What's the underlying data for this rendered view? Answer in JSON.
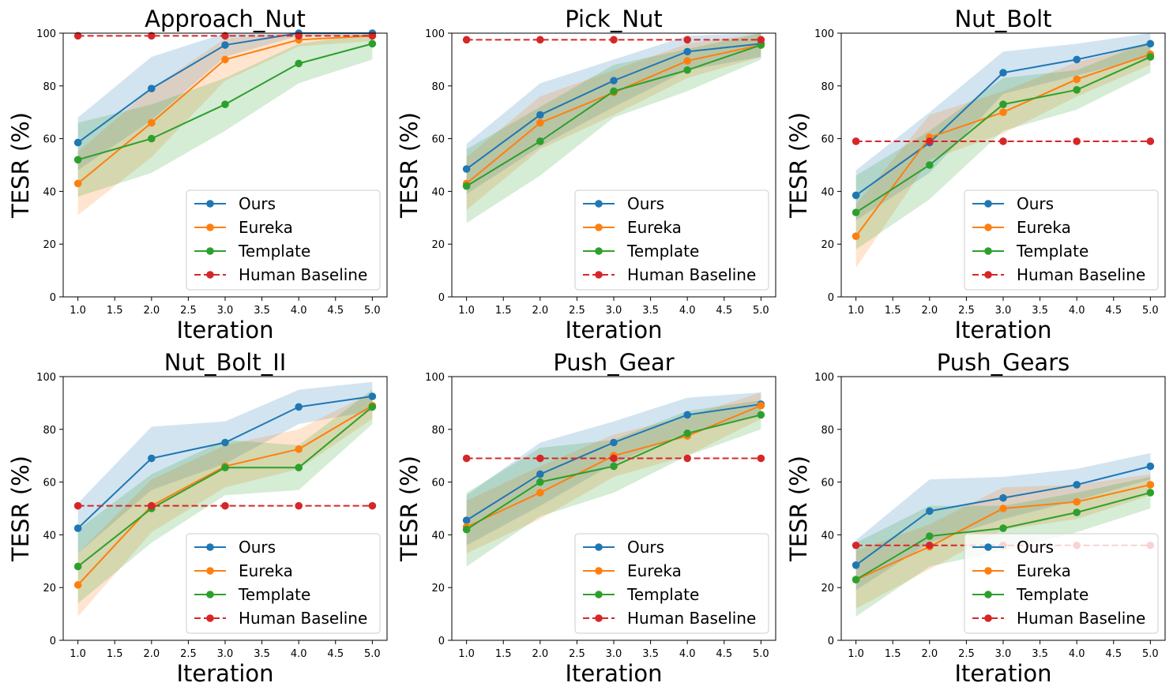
{
  "figure": {
    "legend_position": "lower-right",
    "x_ticks": [
      "1.0",
      "1.5",
      "2.0",
      "2.5",
      "3.0",
      "3.5",
      "4.0",
      "4.5",
      "5.0"
    ],
    "y_ticks": [
      "0",
      "20",
      "40",
      "60",
      "80",
      "100"
    ]
  },
  "chart_data": [
    {
      "type": "line",
      "title": "Approach_Nut",
      "xlabel": "Iteration",
      "ylabel": "TESR (%)",
      "xlim": [
        0.8,
        5.2
      ],
      "ylim": [
        0,
        100
      ],
      "grid": false,
      "legend_position": "lower-right",
      "x": [
        1,
        2,
        3,
        4,
        5
      ],
      "series": [
        {
          "name": "Ours",
          "color": "#1f77b4",
          "dashed": false,
          "values": [
            58.5,
            79,
            95.5,
            100,
            100
          ],
          "band_low": [
            48,
            67,
            91,
            99,
            99
          ],
          "band_high": [
            68,
            91,
            100,
            100,
            100
          ]
        },
        {
          "name": "Eureka",
          "color": "#ff7f0e",
          "dashed": false,
          "values": [
            43,
            66,
            90,
            97.5,
            99
          ],
          "band_low": [
            31,
            53,
            82,
            95,
            97
          ],
          "band_high": [
            55,
            79,
            98,
            100,
            100
          ]
        },
        {
          "name": "Template",
          "color": "#2ca02c",
          "dashed": false,
          "values": [
            52,
            60,
            73,
            88.5,
            96
          ],
          "band_low": [
            38,
            47,
            63,
            81,
            90
          ],
          "band_high": [
            66,
            73,
            83,
            96,
            100
          ]
        },
        {
          "name": "Human Baseline",
          "color": "#d62728",
          "dashed": true,
          "values": [
            99,
            99,
            99,
            99,
            99
          ]
        }
      ]
    },
    {
      "type": "line",
      "title": "Pick_Nut",
      "xlabel": "Iteration",
      "ylabel": "TESR (%)",
      "xlim": [
        0.8,
        5.2
      ],
      "ylim": [
        0,
        100
      ],
      "grid": false,
      "legend_position": "lower-right",
      "x": [
        1,
        2,
        3,
        4,
        5
      ],
      "series": [
        {
          "name": "Ours",
          "color": "#1f77b4",
          "dashed": false,
          "values": [
            48.5,
            69,
            82,
            93,
            96
          ],
          "band_low": [
            39,
            57,
            72,
            86,
            91
          ],
          "band_high": [
            58,
            81,
            90,
            99,
            100
          ]
        },
        {
          "name": "Eureka",
          "color": "#ff7f0e",
          "dashed": false,
          "values": [
            43,
            66,
            77.5,
            89.5,
            95.5
          ],
          "band_low": [
            33,
            56,
            69,
            83,
            91
          ],
          "band_high": [
            53,
            76,
            86,
            96,
            100
          ]
        },
        {
          "name": "Template",
          "color": "#2ca02c",
          "dashed": false,
          "values": [
            42,
            59,
            78,
            86,
            95.5
          ],
          "band_low": [
            28,
            46,
            68,
            78,
            90
          ],
          "band_high": [
            56,
            72,
            88,
            94,
            100
          ]
        },
        {
          "name": "Human Baseline",
          "color": "#d62728",
          "dashed": true,
          "values": [
            97.5,
            97.5,
            97.5,
            97.5,
            97.5
          ]
        }
      ]
    },
    {
      "type": "line",
      "title": "Nut_Bolt",
      "xlabel": "Iteration",
      "ylabel": "TESR (%)",
      "xlim": [
        0.8,
        5.2
      ],
      "ylim": [
        0,
        100
      ],
      "grid": false,
      "legend_position": "lower-right",
      "x": [
        1,
        2,
        3,
        4,
        5
      ],
      "series": [
        {
          "name": "Ours",
          "color": "#1f77b4",
          "dashed": false,
          "values": [
            38.5,
            58.5,
            85,
            90,
            96
          ],
          "band_low": [
            29,
            47,
            77,
            84,
            91
          ],
          "band_high": [
            48,
            70,
            93,
            96,
            100
          ]
        },
        {
          "name": "Eureka",
          "color": "#ff7f0e",
          "dashed": false,
          "values": [
            23,
            60.5,
            70,
            82.5,
            92
          ],
          "band_low": [
            11,
            52,
            62,
            76,
            88
          ],
          "band_high": [
            35,
            69,
            78,
            89,
            96
          ]
        },
        {
          "name": "Template",
          "color": "#2ca02c",
          "dashed": false,
          "values": [
            32,
            50,
            73,
            78.5,
            91
          ],
          "band_low": [
            18,
            37,
            63,
            71,
            85
          ],
          "band_high": [
            46,
            63,
            83,
            86,
            97
          ]
        },
        {
          "name": "Human Baseline",
          "color": "#d62728",
          "dashed": true,
          "values": [
            59,
            59,
            59,
            59,
            59
          ]
        }
      ]
    },
    {
      "type": "line",
      "title": "Nut_Bolt_II",
      "xlabel": "Iteration",
      "ylabel": "TESR (%)",
      "xlim": [
        0.8,
        5.2
      ],
      "ylim": [
        0,
        100
      ],
      "grid": false,
      "legend_position": "lower-right",
      "x": [
        1,
        2,
        3,
        4,
        5
      ],
      "series": [
        {
          "name": "Ours",
          "color": "#1f77b4",
          "dashed": false,
          "values": [
            42.5,
            69,
            75,
            88.5,
            92.5
          ],
          "band_low": [
            33,
            57,
            67,
            82,
            87
          ],
          "band_high": [
            52,
            81,
            83,
            95,
            98
          ]
        },
        {
          "name": "Eureka",
          "color": "#ff7f0e",
          "dashed": false,
          "values": [
            21,
            51,
            66,
            72.5,
            89
          ],
          "band_low": [
            9,
            41,
            58,
            65,
            84
          ],
          "band_high": [
            33,
            61,
            74,
            80,
            94
          ]
        },
        {
          "name": "Template",
          "color": "#2ca02c",
          "dashed": false,
          "values": [
            28,
            50,
            65.5,
            65.5,
            88.5
          ],
          "band_low": [
            14,
            37,
            55,
            57,
            82
          ],
          "band_high": [
            42,
            63,
            76,
            74,
            95
          ]
        },
        {
          "name": "Human Baseline",
          "color": "#d62728",
          "dashed": true,
          "values": [
            51,
            51,
            51,
            51,
            51
          ]
        }
      ]
    },
    {
      "type": "line",
      "title": "Push_Gear",
      "xlabel": "Iteration",
      "ylabel": "TESR (%)",
      "xlim": [
        0.8,
        5.2
      ],
      "ylim": [
        0,
        100
      ],
      "grid": false,
      "legend_position": "lower-right",
      "x": [
        1,
        2,
        3,
        4,
        5
      ],
      "series": [
        {
          "name": "Ours",
          "color": "#1f77b4",
          "dashed": false,
          "values": [
            45.5,
            63,
            75,
            85.5,
            89.5
          ],
          "band_low": [
            36,
            51,
            67,
            79,
            85
          ],
          "band_high": [
            55,
            75,
            83,
            92,
            94
          ]
        },
        {
          "name": "Eureka",
          "color": "#ff7f0e",
          "dashed": false,
          "values": [
            43,
            56,
            70,
            77.5,
            89
          ],
          "band_low": [
            33,
            46,
            62,
            70,
            84
          ],
          "band_high": [
            53,
            66,
            78,
            85,
            94
          ]
        },
        {
          "name": "Template",
          "color": "#2ca02c",
          "dashed": false,
          "values": [
            42,
            60,
            66,
            78.5,
            85.5
          ],
          "band_low": [
            28,
            47,
            56,
            70,
            80
          ],
          "band_high": [
            56,
            73,
            76,
            87,
            91
          ]
        },
        {
          "name": "Human Baseline",
          "color": "#d62728",
          "dashed": true,
          "values": [
            69,
            69,
            69,
            69,
            69
          ]
        }
      ]
    },
    {
      "type": "line",
      "title": "Push_Gears",
      "xlabel": "Iteration",
      "ylabel": "TESR (%)",
      "xlim": [
        0.8,
        5.2
      ],
      "ylim": [
        0,
        100
      ],
      "grid": false,
      "legend_position": "lower-right",
      "x": [
        1,
        2,
        3,
        4,
        5
      ],
      "series": [
        {
          "name": "Ours",
          "color": "#1f77b4",
          "dashed": false,
          "values": [
            28.5,
            49,
            54,
            59,
            66
          ],
          "band_low": [
            19,
            37,
            46,
            53,
            61
          ],
          "band_high": [
            38,
            61,
            62,
            65,
            71
          ]
        },
        {
          "name": "Eureka",
          "color": "#ff7f0e",
          "dashed": false,
          "values": [
            23,
            35.5,
            50,
            52.5,
            59
          ],
          "band_low": [
            12,
            27,
            42,
            46,
            55
          ],
          "band_high": [
            34,
            44,
            58,
            59,
            63
          ]
        },
        {
          "name": "Template",
          "color": "#2ca02c",
          "dashed": false,
          "values": [
            23,
            39.5,
            42.5,
            48.5,
            56
          ],
          "band_low": [
            9,
            28,
            34,
            41,
            50
          ],
          "band_high": [
            37,
            51,
            51,
            56,
            62
          ]
        },
        {
          "name": "Human Baseline",
          "color": "#d62728",
          "dashed": true,
          "values": [
            36,
            36,
            36,
            36,
            36
          ]
        }
      ]
    }
  ]
}
